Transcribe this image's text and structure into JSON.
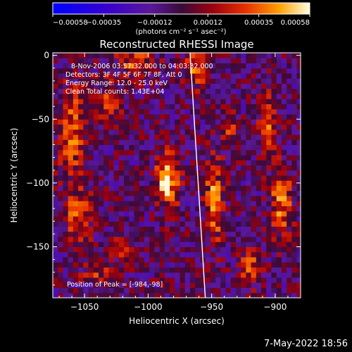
{
  "chart_data": {
    "type": "heatmap",
    "title": "Reconstructed RHESSI Image",
    "xlabel": "Heliocentric X (arcsec)",
    "ylabel": "Heliocentric Y (arcsec)",
    "xlim": [
      -1075,
      -880
    ],
    "ylim": [
      -190,
      2
    ],
    "xticks": [
      -1050,
      -1000,
      -950,
      -900
    ],
    "yticks": [
      0,
      -50,
      -100,
      -150
    ],
    "xtick_labels": [
      "−1050",
      "−1000",
      "−950",
      "−900"
    ],
    "ytick_labels": [
      "0",
      "−50",
      "−100",
      "−150"
    ],
    "colorbar": {
      "range": [
        -0.00058,
        0.00058
      ],
      "tick_values": [
        -0.00058,
        -0.00035,
        -0.00012,
        0.00012,
        0.00035,
        0.00058
      ],
      "tick_labels": [
        "−0.00058",
        "−0.00035",
        "−0.00012",
        "0.00012",
        "0.00035",
        "0.00058"
      ],
      "unit_label": "(photons cm⁻² s⁻¹ asec⁻²)"
    },
    "peak": [
      -984,
      -98
    ],
    "annotations": {
      "time_range": "8-Nov-2006 03:57:32.000 to 04:03:32.000",
      "detectors": "Detectors: 3F 4F 5F 6F 7F 8F, Att 0",
      "energy": "Energy Range: 12.0 - 25.0 keV",
      "clean": "Clean    Total counts: 1.43E+04",
      "peak_text": "Position of Peak = [-984,-98]"
    },
    "limb_line": [
      [
        -967,
        2
      ],
      [
        -955,
        -190
      ]
    ],
    "sources": [
      {
        "x": -985,
        "y": -98,
        "amp": 0.00058,
        "sx": 6,
        "sy": 14
      },
      {
        "x": -948,
        "y": -115,
        "amp": 0.00042,
        "sx": 5,
        "sy": 22
      },
      {
        "x": -895,
        "y": -115,
        "amp": 0.0004,
        "sx": 6,
        "sy": 18
      },
      {
        "x": -1060,
        "y": -60,
        "amp": 0.00035,
        "sx": 7,
        "sy": 25
      },
      {
        "x": -1055,
        "y": -125,
        "amp": 0.0003,
        "sx": 8,
        "sy": 15
      },
      {
        "x": -1030,
        "y": -35,
        "amp": 0.0003,
        "sx": 6,
        "sy": 12
      },
      {
        "x": -1010,
        "y": -5,
        "amp": 0.0003,
        "sx": 10,
        "sy": 8
      },
      {
        "x": -962,
        "y": -10,
        "amp": 0.0004,
        "sx": 6,
        "sy": 10
      },
      {
        "x": -905,
        "y": -55,
        "amp": 0.00032,
        "sx": 5,
        "sy": 18
      },
      {
        "x": -920,
        "y": -165,
        "amp": 0.0003,
        "sx": 6,
        "sy": 10
      },
      {
        "x": -1040,
        "y": -170,
        "amp": 0.00022,
        "sx": 10,
        "sy": 6
      },
      {
        "x": -935,
        "y": -60,
        "amp": 0.00025,
        "sx": 4,
        "sy": 10
      },
      {
        "x": -1020,
        "y": -150,
        "amp": 0.0002,
        "sx": 6,
        "sy": 8
      }
    ]
  },
  "timestamp": "7-May-2022 18:56"
}
